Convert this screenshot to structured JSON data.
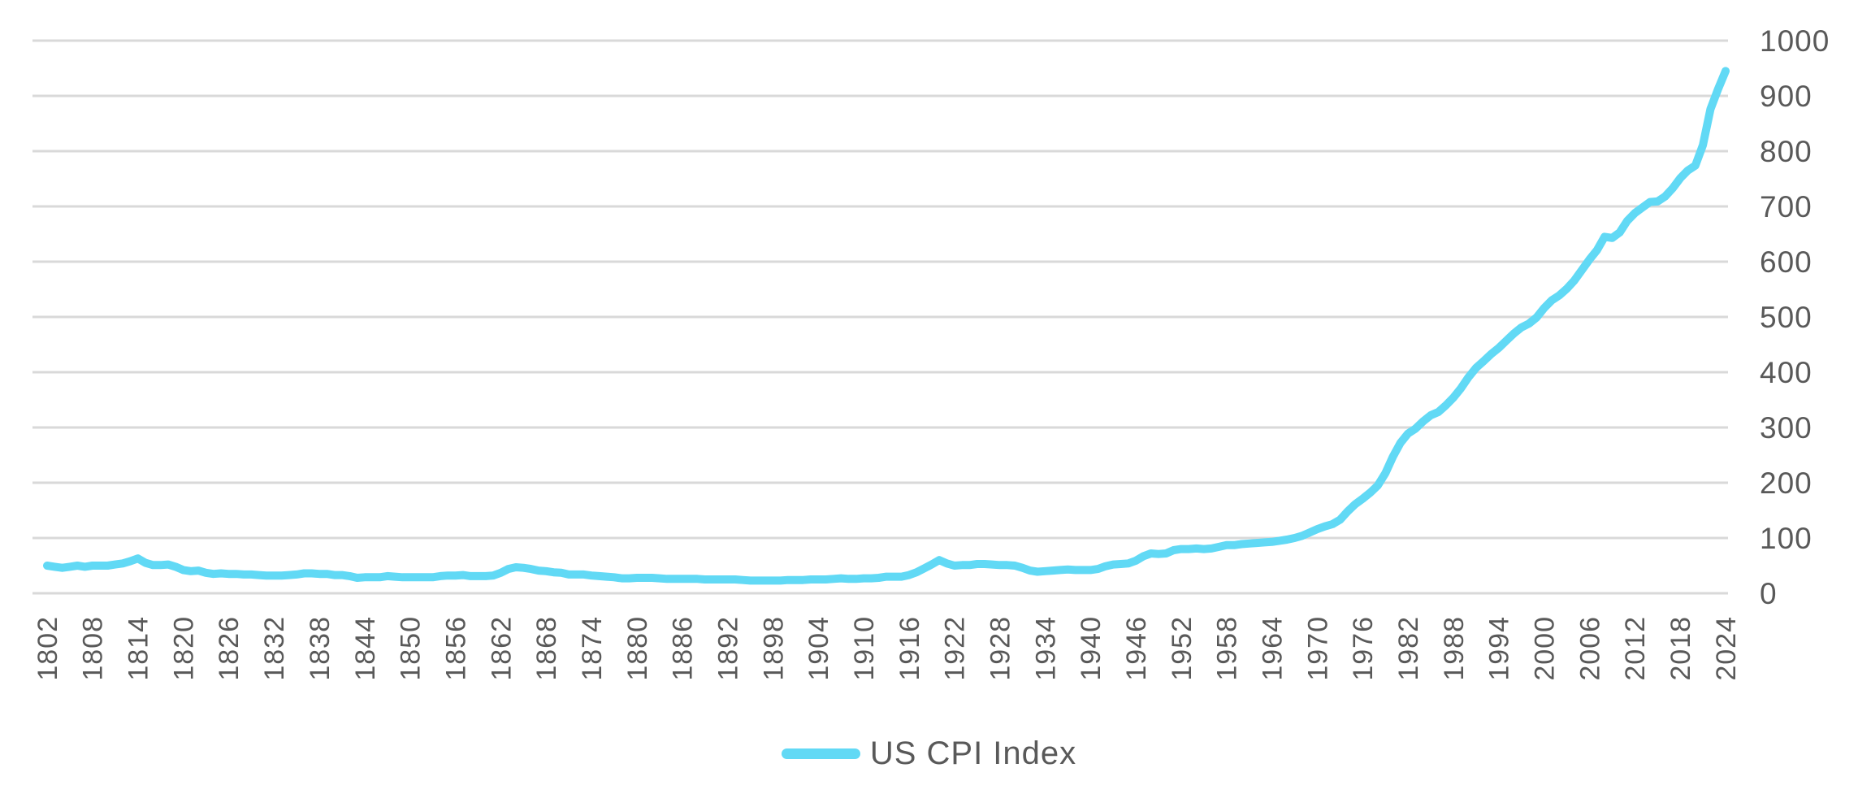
{
  "colors": {
    "line": "#61D9F5",
    "grid": "#D9D9D9",
    "axis_text": "#595959",
    "background": "#FFFFFF"
  },
  "legend": {
    "label": "US CPI Index"
  },
  "chart_data": {
    "type": "line",
    "title": "",
    "xlabel": "",
    "ylabel": "",
    "xlim": [
      1802,
      2024
    ],
    "ylim": [
      0,
      1000
    ],
    "grid": "horizontal",
    "legend_position": "bottom-center",
    "x_tick_rotation": -90,
    "y_axis_side": "right",
    "y_ticks": [
      0,
      100,
      200,
      300,
      400,
      500,
      600,
      700,
      800,
      900,
      1000
    ],
    "x_tick_labels": [
      "1802",
      "1808",
      "1814",
      "1820",
      "1826",
      "1832",
      "1838",
      "1844",
      "1850",
      "1856",
      "1862",
      "1868",
      "1874",
      "1880",
      "1886",
      "1892",
      "1898",
      "1904",
      "1910",
      "1916",
      "1922",
      "1928",
      "1934",
      "1940",
      "1946",
      "1952",
      "1958",
      "1964",
      "1970",
      "1976",
      "1982",
      "1988",
      "1994",
      "2000",
      "2006",
      "2012",
      "2018",
      "2024"
    ],
    "series": [
      {
        "name": "US CPI Index",
        "color": "#61D9F5",
        "x_start": 1802,
        "x_step": 1,
        "values": [
          50,
          48,
          46,
          48,
          50,
          48,
          50,
          50,
          50,
          52,
          54,
          58,
          63,
          55,
          51,
          51,
          52,
          48,
          42,
          40,
          41,
          37,
          35,
          36,
          35,
          35,
          34,
          34,
          33,
          32,
          32,
          32,
          33,
          34,
          36,
          36,
          35,
          35,
          33,
          33,
          31,
          28,
          29,
          29,
          29,
          31,
          30,
          29,
          29,
          29,
          29,
          29,
          31,
          32,
          32,
          33,
          31,
          31,
          31,
          32,
          37,
          44,
          47,
          46,
          44,
          41,
          40,
          38,
          37,
          34,
          34,
          34,
          32,
          31,
          30,
          29,
          27,
          27,
          28,
          28,
          28,
          27,
          26,
          26,
          26,
          26,
          26,
          25,
          25,
          25,
          25,
          25,
          24,
          23,
          23,
          23,
          23,
          23,
          24,
          24,
          24,
          25,
          25,
          25,
          26,
          27,
          26,
          26,
          27,
          27,
          28,
          30,
          30,
          30,
          33,
          38,
          45,
          52,
          60,
          54,
          50,
          51,
          51,
          53,
          53,
          52,
          51,
          51,
          50,
          46,
          41,
          39,
          40,
          41,
          42,
          43,
          42,
          42,
          42,
          44,
          49,
          52,
          53,
          54,
          59,
          67,
          72,
          71,
          72,
          78,
          80,
          80,
          81,
          80,
          81,
          84,
          87,
          87,
          89,
          90,
          91,
          92,
          93,
          95,
          97,
          100,
          104,
          110,
          116,
          121,
          125,
          133,
          148,
          161,
          171,
          182,
          195,
          217,
          247,
          272,
          289,
          298,
          311,
          322,
          328,
          340,
          354,
          371,
          391,
          408,
          420,
          433,
          444,
          457,
          470,
          481,
          488,
          499,
          516,
          530,
          539,
          551,
          566,
          585,
          604,
          621,
          645,
          643,
          653,
          674,
          688,
          698,
          708,
          709,
          718,
          733,
          751,
          765,
          774,
          811,
          876,
          912,
          945
        ]
      }
    ]
  }
}
